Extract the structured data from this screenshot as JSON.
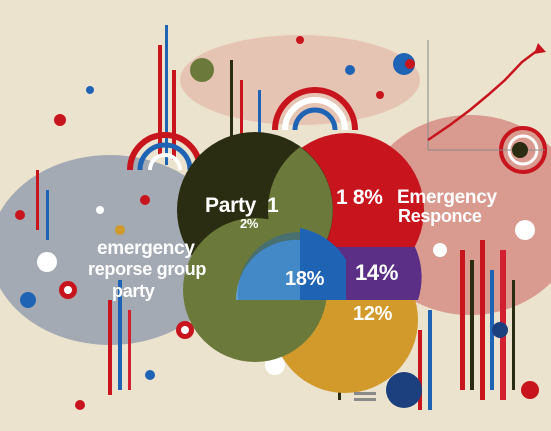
{
  "chart_data": {
    "type": "venn",
    "texts": {
      "party": "Party",
      "party_value": "1",
      "party_sub": "2%",
      "emergency_value": "1 8%",
      "emergency_label_line1": "Emergency",
      "emergency_label_line2": "Responce",
      "group_line1": "emergency",
      "group_line2": "reporse group",
      "group_line3": "party",
      "center_value": "18%",
      "right_value": "14%",
      "bottom_value": "12%"
    },
    "colors": {
      "olive": "#6b7a3a",
      "dark_olive": "#2b2d12",
      "red": "#c8141c",
      "blue": "#1f63b5",
      "purple": "#5b2f86",
      "gold": "#d29a2a",
      "light_blue": "#63a8d6",
      "background": "#ece3cf"
    }
  }
}
